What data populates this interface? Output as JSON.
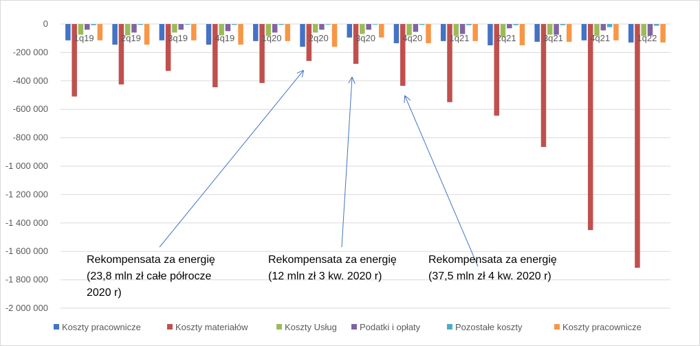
{
  "chart_data": {
    "type": "bar",
    "categories": [
      "1q19",
      "2q19",
      "3q19",
      "4q19",
      "1q20",
      "2q20",
      "3q20",
      "4q20",
      "1q21",
      "2q21",
      "3q21",
      "4q21",
      "1q22"
    ],
    "yticks": [
      "0",
      "-200 000",
      "-400 000",
      "-600 000",
      "-800 000",
      "-1 000 000",
      "-1 200 000",
      "-1 400 000",
      "-1 600 000",
      "-1 800 000",
      "-2 000 000"
    ],
    "ylim": [
      -2000000,
      0
    ],
    "grid": true,
    "legend_position": "bottom",
    "series": [
      {
        "name": "Koszty pracownicze",
        "color": "#4472C4",
        "values": [
          -115000,
          -145000,
          -115000,
          -145000,
          -120000,
          -160000,
          -95000,
          -135000,
          -120000,
          -150000,
          -125000,
          -115000,
          -130000
        ]
      },
      {
        "name": "Koszty materiałów",
        "color": "#C0504D",
        "values": [
          -510000,
          -425000,
          -330000,
          -445000,
          -415000,
          -260000,
          -280000,
          -435000,
          -550000,
          -645000,
          -865000,
          -1450000,
          -1715000
        ]
      },
      {
        "name": "Koszty Usług",
        "color": "#9BBB59",
        "values": [
          -75000,
          -80000,
          -60000,
          -80000,
          -85000,
          -60000,
          -70000,
          -80000,
          -85000,
          -90000,
          -75000,
          -85000,
          -85000
        ]
      },
      {
        "name": "Podatki i opłaty",
        "color": "#8064A2",
        "values": [
          -40000,
          -60000,
          -40000,
          -50000,
          -60000,
          -40000,
          -40000,
          -55000,
          -70000,
          -30000,
          -75000,
          -45000,
          -80000
        ]
      },
      {
        "name": "Pozostałe koszty",
        "color": "#4BACC6",
        "values": [
          -8000,
          -6000,
          -5000,
          -6000,
          -6000,
          -4000,
          -4000,
          -6000,
          -8000,
          -8000,
          -8000,
          -22000,
          -12000
        ]
      },
      {
        "name": "Koszty pracownicze",
        "color": "#F79646",
        "values": [
          -115000,
          -145000,
          -115000,
          -145000,
          -120000,
          -160000,
          -95000,
          -135000,
          -120000,
          -150000,
          -125000,
          -115000,
          -130000
        ]
      }
    ],
    "annotations": [
      {
        "lines": [
          "Rekompensata za energię",
          "(23,8 mln zł całe półrocze",
          "2020 r)"
        ],
        "target_category": "2q20"
      },
      {
        "lines": [
          "Rekompensata za energię",
          "(12 mln zł 3 kw. 2020 r)"
        ],
        "target_category": "3q20"
      },
      {
        "lines": [
          "Rekompensata za energię",
          "(37,5 mln zł 4 kw. 2020 r)"
        ],
        "target_category": "4q20"
      }
    ]
  }
}
